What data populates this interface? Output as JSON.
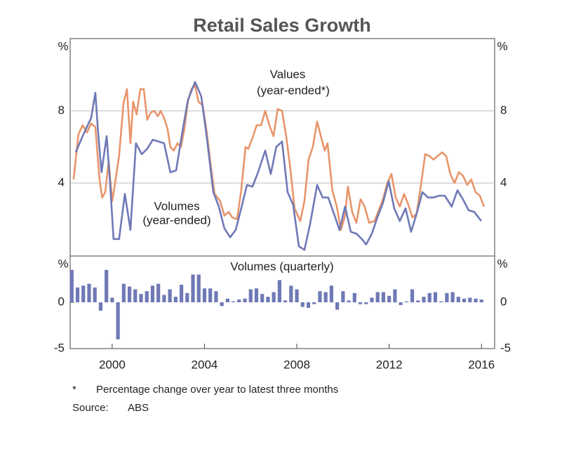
{
  "title": "Retail Sales Growth",
  "chart_data": [
    {
      "type": "line",
      "y_unit": "%",
      "xlim": [
        1998.18,
        2016.57
      ],
      "ylim": [
        0,
        12
      ],
      "yticks": [
        4,
        8
      ],
      "grid": true,
      "series": [
        {
          "name": "Values",
          "color": "#e8956b",
          "x": [
            1998.33,
            1998.54,
            1998.72,
            1998.91,
            1999.09,
            1999.27,
            1999.45,
            1999.57,
            1999.7,
            1999.85,
            2000.0,
            2000.15,
            2000.3,
            2000.49,
            2000.64,
            2000.79,
            2000.91,
            2001.06,
            2001.22,
            2001.37,
            2001.52,
            2001.67,
            2001.82,
            2001.98,
            2002.1,
            2002.25,
            2002.4,
            2002.52,
            2002.67,
            2002.83,
            2002.98,
            2003.13,
            2003.28,
            2003.43,
            2003.59,
            2003.74,
            2003.92,
            2004.1,
            2004.29,
            2004.44,
            2004.68,
            2004.86,
            2005.05,
            2005.2,
            2005.41,
            2005.59,
            2005.78,
            2005.9,
            2006.08,
            2006.26,
            2006.45,
            2006.63,
            2006.81,
            2006.99,
            2007.17,
            2007.36,
            2007.54,
            2007.72,
            2007.9,
            2008.15,
            2008.33,
            2008.51,
            2008.69,
            2008.88,
            2009.06,
            2009.21,
            2009.33,
            2009.54,
            2009.73,
            2009.91,
            2010.09,
            2010.21,
            2010.4,
            2010.58,
            2010.76,
            2010.94,
            2011.13,
            2011.37,
            2011.55,
            2011.73,
            2011.92,
            2012.1,
            2012.28,
            2012.46,
            2012.65,
            2012.83,
            2013.01,
            2013.19,
            2013.37,
            2013.56,
            2013.74,
            2013.92,
            2014.1,
            2014.29,
            2014.47,
            2014.65,
            2014.83,
            2015.02,
            2015.2,
            2015.38,
            2015.56,
            2015.74,
            2015.93,
            2016.11
          ],
          "values": [
            4.2,
            6.7,
            7.2,
            6.8,
            7.3,
            7.1,
            4.2,
            3.2,
            3.5,
            5.2,
            3.0,
            4.2,
            5.5,
            8.4,
            9.2,
            6.2,
            8.5,
            7.8,
            9.2,
            9.2,
            7.5,
            7.9,
            8.0,
            7.7,
            8.0,
            7.6,
            7.0,
            6.0,
            5.8,
            6.2,
            6.0,
            7.0,
            8.5,
            9.2,
            9.4,
            8.5,
            8.3,
            6.8,
            4.8,
            3.4,
            3.0,
            2.2,
            2.4,
            2.1,
            2.0,
            3.6,
            6.0,
            5.9,
            6.5,
            7.2,
            7.2,
            8.0,
            7.2,
            6.6,
            8.1,
            8.0,
            6.6,
            4.8,
            2.6,
            1.9,
            3.0,
            5.3,
            6.0,
            7.4,
            6.5,
            5.8,
            6.2,
            3.6,
            2.7,
            1.4,
            2.2,
            3.8,
            2.4,
            1.8,
            3.1,
            2.7,
            1.8,
            1.9,
            2.5,
            3.1,
            4.0,
            4.5,
            3.2,
            2.7,
            3.4,
            2.8,
            2.1,
            2.3,
            3.8,
            5.6,
            5.5,
            5.3,
            5.5,
            5.7,
            5.5,
            4.5,
            4.0,
            4.6,
            4.4,
            3.9,
            4.2,
            3.5,
            3.3,
            2.7
          ]
        },
        {
          "name": "Volumes",
          "color": "#6f79b6",
          "x": [
            1998.42,
            1998.72,
            1998.94,
            1999.09,
            1999.27,
            1999.39,
            1999.54,
            1999.76,
            1999.91,
            2000.06,
            2000.3,
            2000.55,
            2000.79,
            2001.03,
            2001.28,
            2001.52,
            2001.76,
            2002.01,
            2002.25,
            2002.52,
            2002.77,
            2003.01,
            2003.28,
            2003.59,
            2003.86,
            2004.1,
            2004.38,
            2004.62,
            2004.86,
            2005.11,
            2005.35,
            2005.59,
            2005.84,
            2006.08,
            2006.32,
            2006.63,
            2006.87,
            2007.11,
            2007.36,
            2007.6,
            2007.84,
            2008.09,
            2008.33,
            2008.57,
            2008.88,
            2009.12,
            2009.36,
            2009.61,
            2009.85,
            2010.09,
            2010.34,
            2010.58,
            2010.82,
            2011.0,
            2011.25,
            2011.49,
            2011.73,
            2011.98,
            2012.22,
            2012.46,
            2012.71,
            2012.95,
            2013.19,
            2013.44,
            2013.68,
            2013.92,
            2014.17,
            2014.41,
            2014.71,
            2014.96,
            2015.2,
            2015.44,
            2015.69,
            2015.99
          ],
          "values": [
            5.7,
            6.6,
            7.2,
            7.6,
            9.0,
            6.8,
            4.6,
            6.6,
            4.0,
            0.9,
            0.9,
            3.4,
            1.4,
            6.2,
            5.6,
            5.9,
            6.4,
            6.3,
            6.2,
            4.6,
            4.7,
            6.6,
            8.6,
            9.6,
            8.8,
            6.5,
            3.5,
            2.7,
            1.5,
            1.0,
            1.4,
            2.6,
            3.9,
            3.8,
            4.6,
            5.8,
            4.5,
            6.0,
            6.3,
            3.5,
            2.8,
            0.5,
            0.3,
            1.7,
            3.9,
            3.2,
            3.2,
            2.3,
            1.4,
            2.7,
            1.3,
            1.2,
            0.9,
            0.6,
            1.2,
            2.1,
            2.9,
            4.1,
            2.6,
            1.9,
            2.6,
            1.3,
            2.3,
            3.5,
            3.2,
            3.2,
            3.3,
            3.3,
            2.7,
            3.6,
            3.1,
            2.5,
            2.4,
            1.9
          ]
        }
      ],
      "annotations": [
        {
          "text": "Values",
          "color": "#e8956b"
        },
        {
          "text": "(year-ended*)",
          "color": "#e8956b"
        },
        {
          "text": "Volumes",
          "color": "#6f79b6"
        },
        {
          "text": "(year-ended)",
          "color": "#6f79b6"
        }
      ]
    },
    {
      "type": "bar",
      "title": "Volumes (quarterly)",
      "y_unit": "%",
      "color": "#6f79b6",
      "xlim": [
        1998.18,
        2016.57
      ],
      "xticks": [
        2000,
        2004,
        2008,
        2012,
        2016
      ],
      "ylim": [
        -5,
        5
      ],
      "yticks": [
        -5,
        0
      ],
      "x": [
        1998.25,
        1998.5,
        1998.75,
        1999.0,
        1999.25,
        1999.5,
        1999.75,
        2000.0,
        2000.25,
        2000.5,
        2000.75,
        2001.0,
        2001.25,
        2001.5,
        2001.75,
        2002.0,
        2002.25,
        2002.5,
        2002.75,
        2003.0,
        2003.25,
        2003.5,
        2003.75,
        2004.0,
        2004.25,
        2004.5,
        2004.75,
        2005.0,
        2005.25,
        2005.5,
        2005.75,
        2006.0,
        2006.25,
        2006.5,
        2006.75,
        2007.0,
        2007.25,
        2007.5,
        2007.75,
        2008.0,
        2008.25,
        2008.5,
        2008.75,
        2009.0,
        2009.25,
        2009.5,
        2009.75,
        2010.0,
        2010.25,
        2010.5,
        2010.75,
        2011.0,
        2011.25,
        2011.5,
        2011.75,
        2012.0,
        2012.25,
        2012.5,
        2012.75,
        2013.0,
        2013.25,
        2013.5,
        2013.75,
        2014.0,
        2014.25,
        2014.5,
        2014.75,
        2015.0,
        2015.25,
        2015.5,
        2015.75,
        2016.0
      ],
      "values": [
        3.5,
        1.6,
        1.8,
        2.0,
        1.6,
        -0.9,
        3.5,
        0.5,
        -4.0,
        2.0,
        1.7,
        1.4,
        0.9,
        1.2,
        1.8,
        2.0,
        0.8,
        1.4,
        0.6,
        1.9,
        1.0,
        3.0,
        3.0,
        1.5,
        1.5,
        1.2,
        -0.4,
        0.4,
        0.1,
        0.3,
        0.4,
        1.4,
        1.5,
        0.9,
        0.6,
        1.1,
        2.4,
        0.2,
        1.8,
        1.4,
        -0.5,
        -0.6,
        -0.2,
        1.2,
        1.1,
        1.8,
        -0.8,
        1.2,
        0.2,
        1.0,
        -0.2,
        -0.2,
        0.5,
        1.1,
        1.1,
        0.7,
        1.4,
        -0.3,
        0.1,
        1.4,
        0.2,
        0.6,
        1.0,
        1.1,
        0.1,
        1.0,
        1.1,
        0.6,
        0.4,
        0.5,
        0.4,
        0.3
      ]
    }
  ],
  "notes": [
    {
      "marker": "*",
      "text": "Percentage change over year to latest three months"
    }
  ],
  "source": {
    "label": "Source:",
    "text": "ABS"
  }
}
